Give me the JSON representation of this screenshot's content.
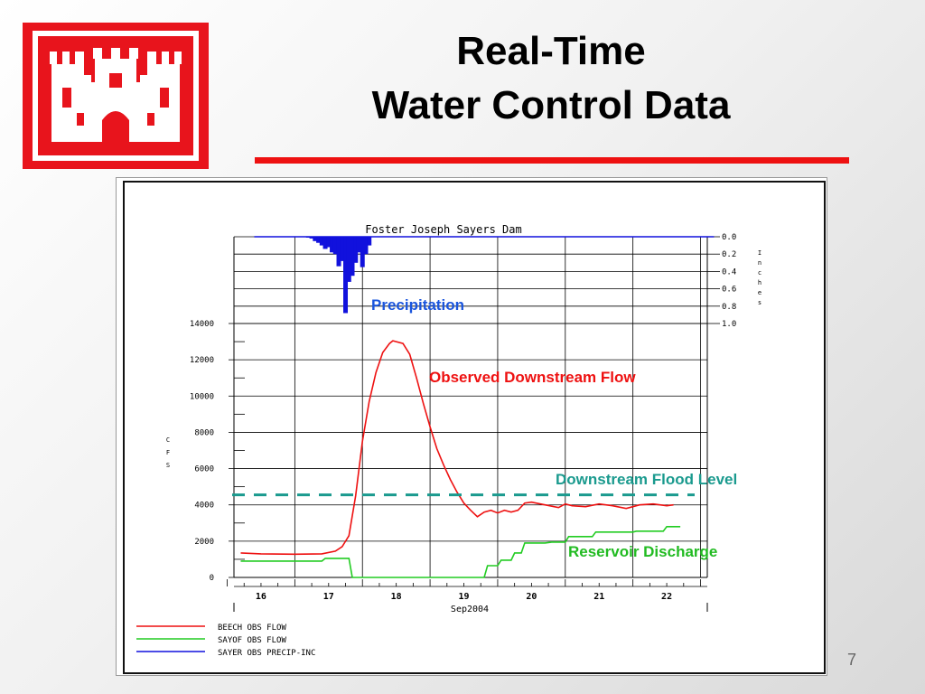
{
  "slide": {
    "title_line1": "Real-Time",
    "title_line2": "Water Control Data",
    "page_number": "7"
  },
  "colors": {
    "title_rule": "#ee1111",
    "logo_red": "#e8141c",
    "observed_flow": "#ee1111",
    "discharge": "#22cc22",
    "precip": "#1111dd",
    "flood_level": "#1a9a8e"
  },
  "chart_data": {
    "type": "line",
    "title": "Foster Joseph Sayers Dam",
    "xlabel": "Sep2004",
    "ylabel": "CFS",
    "y2label": "Inches",
    "x_ticks": [
      "16",
      "17",
      "18",
      "19",
      "20",
      "21",
      "22"
    ],
    "ylim": [
      0,
      14000
    ],
    "y_ticks": [
      "0",
      "2000",
      "4000",
      "6000",
      "8000",
      "10000",
      "12000",
      "14000"
    ],
    "y2lim": [
      0,
      1.0
    ],
    "y2_ticks": [
      "0.0",
      "0.2",
      "0.4",
      "0.6",
      "0.8",
      "1.0"
    ],
    "grid": true,
    "legend_position": "bottom-left",
    "series": [
      {
        "name": "BEECH OBS FLOW",
        "color": "#ee1111",
        "x": [
          15.7,
          16.0,
          16.5,
          16.9,
          17.1,
          17.2,
          17.3,
          17.4,
          17.5,
          17.6,
          17.7,
          17.8,
          17.9,
          17.95,
          18.0,
          18.1,
          18.2,
          18.3,
          18.4,
          18.5,
          18.6,
          18.7,
          18.8,
          18.9,
          19.0,
          19.1,
          19.2,
          19.3,
          19.4,
          19.5,
          19.6,
          19.7,
          19.8,
          19.9,
          20.0,
          20.2,
          20.4,
          20.5,
          20.6,
          20.8,
          21.0,
          21.2,
          21.4,
          21.6,
          21.8,
          22.0,
          22.1
        ],
        "values": [
          1350,
          1300,
          1280,
          1300,
          1450,
          1700,
          2300,
          4500,
          7500,
          9700,
          11300,
          12400,
          12900,
          13050,
          13000,
          12900,
          12300,
          11000,
          9600,
          8300,
          7100,
          6200,
          5400,
          4700,
          4100,
          3700,
          3350,
          3600,
          3700,
          3550,
          3700,
          3600,
          3700,
          4100,
          4150,
          4000,
          3850,
          4050,
          3950,
          3900,
          4050,
          3950,
          3800,
          4000,
          4050,
          3950,
          4000
        ]
      },
      {
        "name": "SAYOF OBS FLOW",
        "color": "#22cc22",
        "x": [
          15.7,
          16.0,
          16.5,
          16.9,
          16.95,
          17.3,
          17.35,
          17.5,
          18.0,
          18.5,
          19.0,
          19.3,
          19.35,
          19.5,
          19.55,
          19.7,
          19.75,
          19.85,
          19.9,
          20.2,
          20.3,
          20.5,
          20.55,
          20.9,
          20.95,
          21.5,
          21.55,
          21.95,
          22.0,
          22.2
        ],
        "values": [
          900,
          900,
          900,
          900,
          1050,
          1050,
          0,
          0,
          0,
          0,
          0,
          0,
          650,
          650,
          950,
          950,
          1350,
          1350,
          1900,
          1900,
          1950,
          1950,
          2250,
          2250,
          2500,
          2500,
          2550,
          2550,
          2800,
          2800
        ]
      }
    ],
    "precip": {
      "name": "SAYER OBS PRECIP-INC",
      "color": "#1111dd",
      "x": [
        16.7,
        16.75,
        16.8,
        16.85,
        16.9,
        16.95,
        17.0,
        17.05,
        17.1,
        17.15,
        17.2,
        17.25,
        17.3,
        17.35,
        17.4,
        17.45,
        17.5,
        17.55,
        17.6
      ],
      "values": [
        0.01,
        0.02,
        0.05,
        0.07,
        0.1,
        0.14,
        0.12,
        0.18,
        0.2,
        0.34,
        0.28,
        0.88,
        0.52,
        0.45,
        0.3,
        0.18,
        0.35,
        0.2,
        0.1
      ]
    },
    "flood_level": {
      "name": "Downstream Flood Level",
      "value": 4550,
      "color": "#1a9a8e"
    },
    "annotations": [
      {
        "text": "Precipitation",
        "color": "#1a55dd"
      },
      {
        "text": "Observed Downstream Flow",
        "color": "#ee1111"
      },
      {
        "text": "Downstream Flood Level",
        "color": "#1a9a8e"
      },
      {
        "text": "Reservoir Discharge",
        "color": "#22bb22"
      }
    ]
  }
}
